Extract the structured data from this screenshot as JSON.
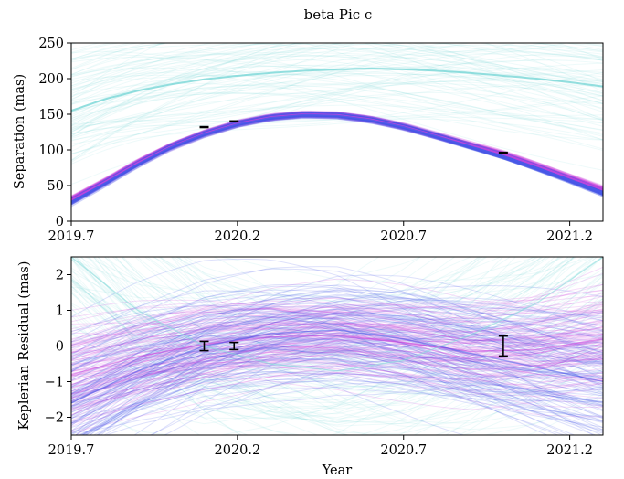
{
  "chart_data": [
    {
      "type": "line",
      "title": "beta Pic c",
      "xlabel": "",
      "ylabel": "Separation (mas)",
      "xlim": [
        2019.7,
        2021.3
      ],
      "ylim": [
        0,
        250
      ],
      "xticks": [
        "2019.7",
        "2020.2",
        "2020.7",
        "2021.2"
      ],
      "yticks": [
        "0",
        "50",
        "100",
        "150",
        "200",
        "250"
      ],
      "grid": false,
      "series": [
        {
          "color": "#cc44dd",
          "x": [
            2019.7,
            2019.8,
            2019.9,
            2020.0,
            2020.1,
            2020.2,
            2020.3,
            2020.4,
            2020.5,
            2020.6,
            2020.7,
            2020.8,
            2020.9,
            2021.0,
            2021.1,
            2021.2,
            2021.3
          ],
          "y": [
            30,
            55,
            82,
            105,
            123,
            137,
            146,
            150,
            149,
            143,
            133,
            120,
            107,
            94,
            78,
            61,
            44
          ]
        },
        {
          "color": "#4a5ae8",
          "x": [
            2019.7,
            2019.8,
            2019.9,
            2020.0,
            2020.1,
            2020.2,
            2020.3,
            2020.4,
            2020.5,
            2020.6,
            2020.7,
            2020.8,
            2020.9,
            2021.0,
            2021.1,
            2021.2,
            2021.3
          ],
          "y": [
            27,
            53,
            80,
            104,
            122,
            136,
            145,
            149,
            148,
            142,
            132,
            119,
            105,
            91,
            75,
            58,
            40
          ]
        },
        {
          "color": "#7fd8d8",
          "x": [
            2019.7,
            2019.8,
            2019.9,
            2020.0,
            2020.1,
            2020.2,
            2020.3,
            2020.4,
            2020.5,
            2020.6,
            2020.7,
            2020.8,
            2020.9,
            2021.0,
            2021.1,
            2021.2,
            2021.3
          ],
          "y": [
            155,
            171,
            183,
            192,
            199,
            204,
            208,
            211,
            213,
            214,
            213,
            211,
            208,
            204,
            200,
            195,
            189
          ]
        }
      ],
      "observations": [
        {
          "x": 2020.1,
          "y": 132,
          "err": 1.5
        },
        {
          "x": 2020.19,
          "y": 140,
          "err": 1.2
        },
        {
          "x": 2021.0,
          "y": 96,
          "err": 1.0
        }
      ]
    },
    {
      "type": "line",
      "title": "",
      "xlabel": "Year",
      "ylabel": "Keplerian Residual (mas)",
      "xlim": [
        2019.7,
        2021.3
      ],
      "ylim": [
        -2.5,
        2.5
      ],
      "xticks": [
        "2019.7",
        "2020.2",
        "2020.7",
        "2021.2"
      ],
      "yticks": [
        "−2",
        "−1",
        "0",
        "1",
        "2"
      ],
      "grid": false,
      "series": [
        {
          "color": "#cc44dd",
          "x": [
            2019.7,
            2019.9,
            2020.1,
            2020.3,
            2020.5,
            2020.7,
            2020.9,
            2021.1,
            2021.3
          ],
          "y": [
            -0.8,
            -0.3,
            0.05,
            0.25,
            0.3,
            0.1,
            -0.15,
            -0.1,
            0.2
          ]
        },
        {
          "color": "#4a5ae8",
          "x": [
            2019.7,
            2019.9,
            2020.1,
            2020.3,
            2020.5,
            2020.7,
            2020.9,
            2021.1,
            2021.3
          ],
          "y": [
            -1.6,
            -0.7,
            0.0,
            0.35,
            0.45,
            0.2,
            -0.2,
            -0.6,
            -1.0
          ]
        },
        {
          "color": "#7fd8d8",
          "x": [
            2019.7,
            2019.9,
            2020.1,
            2020.3,
            2020.5,
            2020.7,
            2020.9,
            2021.1,
            2021.3
          ],
          "y": [
            2.5,
            1.0,
            0.0,
            -0.5,
            -0.7,
            -0.4,
            0.3,
            1.2,
            2.5
          ]
        }
      ],
      "observations": [
        {
          "x": 2020.1,
          "y": 0.0,
          "err": 0.13
        },
        {
          "x": 2020.19,
          "y": 0.0,
          "err": 0.1
        },
        {
          "x": 2021.0,
          "y": 0.0,
          "err": 0.28
        }
      ]
    }
  ]
}
